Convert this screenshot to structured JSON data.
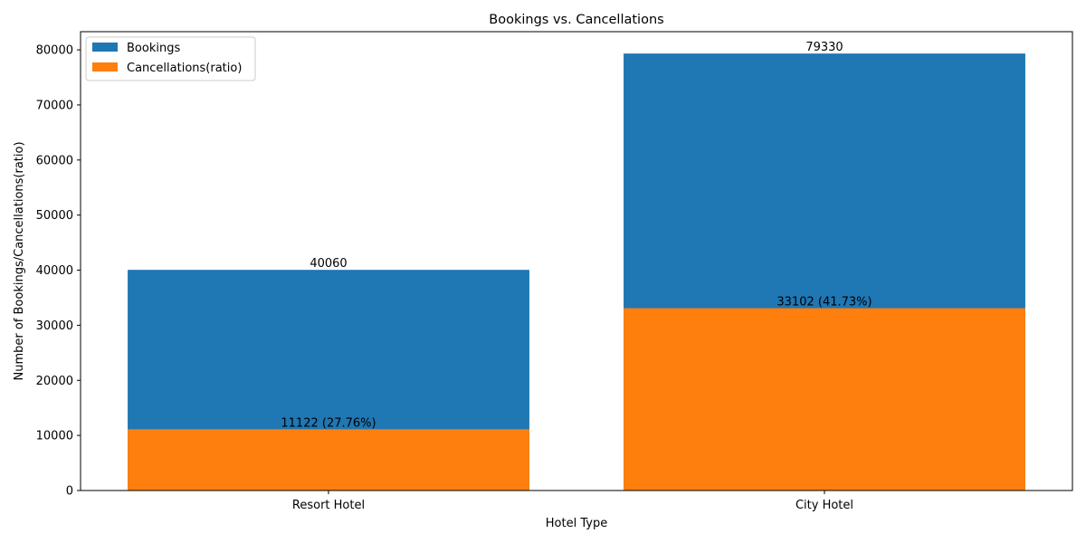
{
  "chart_data": {
    "type": "bar",
    "title": "Bookings vs. Cancellations",
    "xlabel": "Hotel Type",
    "ylabel": "Number of Bookings/Cancellations(ratio)",
    "categories": [
      "Resort Hotel",
      "City Hotel"
    ],
    "ylim": [
      0,
      83300
    ],
    "yticks": [
      0,
      10000,
      20000,
      30000,
      40000,
      50000,
      60000,
      70000,
      80000
    ],
    "grid": false,
    "legend_position": "top-left",
    "series": [
      {
        "name": "Bookings",
        "values": [
          40060,
          79330
        ],
        "labels": [
          "40060",
          "79330"
        ],
        "color": "#1f77b4"
      },
      {
        "name": "Cancellations(ratio)",
        "values": [
          11122,
          33102
        ],
        "labels": [
          "11122 (27.76%)",
          "33102 (41.73%)"
        ],
        "color": "#ff7f0e"
      }
    ]
  }
}
